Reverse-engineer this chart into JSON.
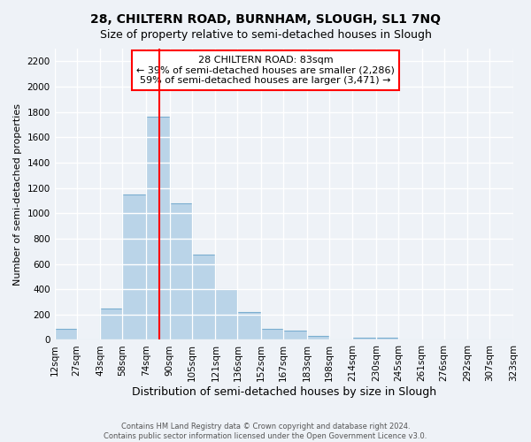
{
  "title1": "28, CHILTERN ROAD, BURNHAM, SLOUGH, SL1 7NQ",
  "title2": "Size of property relative to semi-detached houses in Slough",
  "xlabel": "Distribution of semi-detached houses by size in Slough",
  "ylabel": "Number of semi-detached properties",
  "footer1": "Contains HM Land Registry data © Crown copyright and database right 2024.",
  "footer2": "Contains public sector information licensed under the Open Government Licence v3.0.",
  "bin_edges": [
    12,
    27,
    43,
    58,
    74,
    90,
    105,
    121,
    136,
    152,
    167,
    183,
    198,
    214,
    230,
    245,
    261,
    276,
    292,
    307,
    323
  ],
  "tick_labels": [
    "12sqm",
    "27sqm",
    "43sqm",
    "58sqm",
    "74sqm",
    "90sqm",
    "105sqm",
    "121sqm",
    "136sqm",
    "152sqm",
    "167sqm",
    "183sqm",
    "198sqm",
    "214sqm",
    "230sqm",
    "245sqm",
    "261sqm",
    "276sqm",
    "292sqm",
    "307sqm",
    "323sqm"
  ],
  "values": [
    90,
    0,
    245,
    1150,
    1760,
    1080,
    670,
    400,
    220,
    85,
    70,
    30,
    0,
    20,
    20,
    0,
    0,
    0,
    0,
    0
  ],
  "bar_color": "#bad4e8",
  "bar_edge_color": "#7aaed0",
  "property_sqm": 83,
  "property_line_color": "red",
  "annotation_text": "28 CHILTERN ROAD: 83sqm\n← 39% of semi-detached houses are smaller (2,286)\n59% of semi-detached houses are larger (3,471) →",
  "annotation_box_color": "white",
  "annotation_box_edge_color": "red",
  "ylim": [
    0,
    2300
  ],
  "yticks": [
    0,
    200,
    400,
    600,
    800,
    1000,
    1200,
    1400,
    1600,
    1800,
    2000,
    2200
  ],
  "background_color": "#eef2f7",
  "grid_color": "white",
  "title1_fontsize": 10,
  "title2_fontsize": 9,
  "xlabel_fontsize": 9,
  "ylabel_fontsize": 8,
  "tick_fontsize": 7.5,
  "annotation_fontsize": 8
}
